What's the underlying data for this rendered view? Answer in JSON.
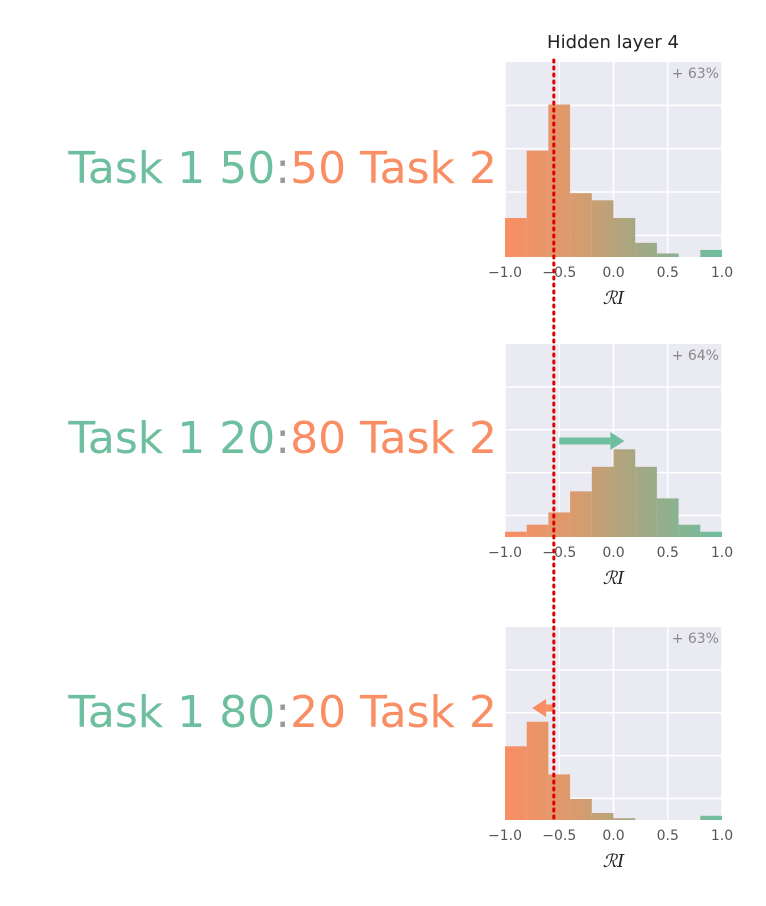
{
  "figure": {
    "title": "Hidden layer 4",
    "xlabel": "ℛI",
    "reference_line_x": -0.55,
    "colors": {
      "task1": "#6dbf9f",
      "task2": "#f98d63",
      "separator": "#999999",
      "panel_bg": "#eaeaf2",
      "grid": "#ffffff",
      "reference_line": "#e00000"
    }
  },
  "chart_data": [
    {
      "type": "bar",
      "label": {
        "task1": "Task 1 50",
        "sep": ":",
        "task2": "50 Task 2"
      },
      "annotation": "+ 63%",
      "x_ticks": [
        "−1.0",
        "−0.5",
        "0.0",
        "0.5",
        "1.0"
      ],
      "xlim": [
        -1.0,
        1.0
      ],
      "ylim": [
        0,
        0.55
      ],
      "bin_edges": [
        -1.0,
        -0.8,
        -0.6,
        -0.4,
        -0.2,
        0.0,
        0.2,
        0.4,
        0.6,
        0.8,
        1.0
      ],
      "values": [
        0.11,
        0.3,
        0.43,
        0.18,
        0.16,
        0.11,
        0.04,
        0.01,
        0.0,
        0.02
      ]
    },
    {
      "type": "bar",
      "label": {
        "task1": "Task 1 20",
        "sep": ":",
        "task2": "80 Task 2"
      },
      "annotation": "+ 64%",
      "arrow": {
        "direction": "right",
        "from": -0.5,
        "to": 0.1,
        "color": "#6dbf9f"
      },
      "x_ticks": [
        "−1.0",
        "−0.5",
        "0.0",
        "0.5",
        "1.0"
      ],
      "xlim": [
        -1.0,
        1.0
      ],
      "ylim": [
        0,
        0.55
      ],
      "bin_edges": [
        -1.0,
        -0.8,
        -0.6,
        -0.4,
        -0.2,
        0.0,
        0.2,
        0.4,
        0.6,
        0.8,
        1.0
      ],
      "values": [
        0.015,
        0.035,
        0.07,
        0.13,
        0.2,
        0.25,
        0.2,
        0.11,
        0.035,
        0.015
      ]
    },
    {
      "type": "bar",
      "label": {
        "task1": "Task 1 80",
        "sep": ":",
        "task2": "20 Task 2"
      },
      "annotation": "+ 63%",
      "arrow": {
        "direction": "left",
        "from": -0.55,
        "to": -0.75,
        "color": "#f98d63"
      },
      "x_ticks": [
        "−1.0",
        "−0.5",
        "0.0",
        "0.5",
        "1.0"
      ],
      "xlim": [
        -1.0,
        1.0
      ],
      "ylim": [
        0,
        0.55
      ],
      "bin_edges": [
        -1.0,
        -0.8,
        -0.6,
        -0.4,
        -0.2,
        0.0,
        0.2,
        0.4,
        0.6,
        0.8,
        1.0
      ],
      "values": [
        0.21,
        0.28,
        0.13,
        0.06,
        0.02,
        0.005,
        0.0,
        0.0,
        0.0,
        0.012
      ]
    }
  ]
}
